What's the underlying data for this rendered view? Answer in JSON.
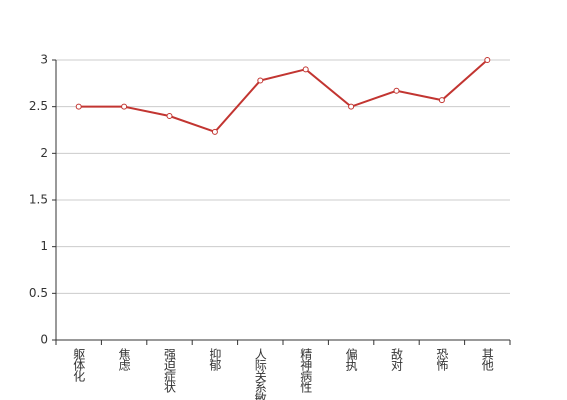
{
  "chart_data": {
    "type": "line",
    "categories": [
      "躯体化",
      "焦虑",
      "强迫症状",
      "抑郁",
      "人际关系敏感",
      "精神病性",
      "偏执",
      "敌对",
      "恐怖",
      "其他"
    ],
    "values": [
      2.5,
      2.5,
      2.4,
      2.23,
      2.78,
      2.9,
      2.5,
      2.67,
      2.57,
      3.0
    ],
    "color": "#c23531",
    "ylim": [
      0,
      3
    ],
    "yticks": [
      0,
      0.5,
      1,
      1.5,
      2,
      2.5,
      3
    ],
    "grid": true
  }
}
